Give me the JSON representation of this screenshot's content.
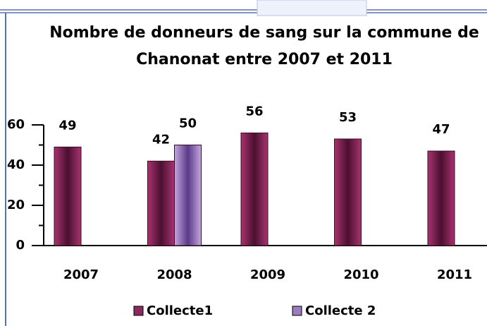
{
  "chart_data": {
    "type": "bar",
    "title": "Nombre de donneurs de sang sur la commune de Chanonat entre 2007 et 2011",
    "categories": [
      "2007",
      "2008",
      "2009",
      "2010",
      "2011"
    ],
    "series": [
      {
        "name": "Collecte1",
        "color": "#8b2a5e",
        "values": [
          49,
          42,
          56,
          53,
          47
        ]
      },
      {
        "name": "Collecte 2",
        "color": "#9a7cc0",
        "values": [
          null,
          50,
          null,
          null,
          null
        ]
      }
    ],
    "ylim": [
      0,
      60
    ],
    "yticks": [
      0,
      20,
      40,
      60
    ],
    "minor_yticks": [
      10,
      30,
      50
    ],
    "legend": "bottom"
  }
}
